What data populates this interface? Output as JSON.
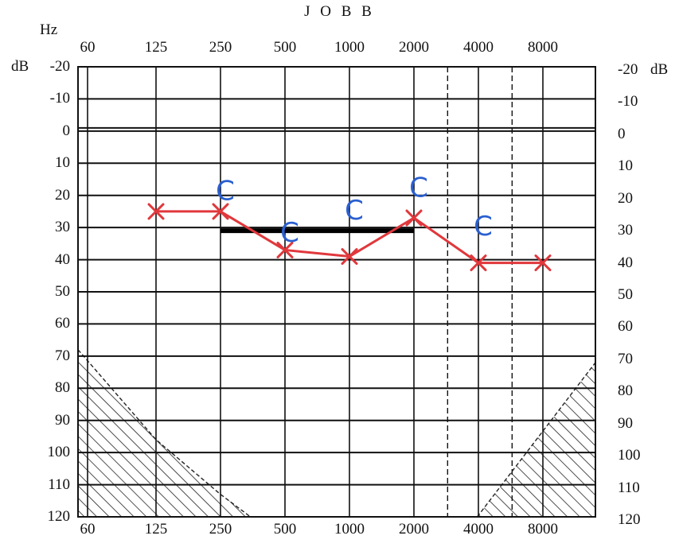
{
  "header": {
    "title": "J O B B",
    "freq_unit": "Hz",
    "db_unit_left": "dB",
    "db_unit_right": "dB"
  },
  "chart_data": {
    "type": "line",
    "title": "J O B B",
    "xlabel": "Hz",
    "ylabel": "dB",
    "x_scale": "log2",
    "x_ticks": [
      "60",
      "125",
      "250",
      "500",
      "1000",
      "2000",
      "4000",
      "8000"
    ],
    "x_ticks_bottom": [
      "60",
      "125",
      "250",
      "500",
      "1000",
      "2000",
      "4000",
      "8000"
    ],
    "y_ticks": [
      "-20",
      "-10",
      "0",
      "10",
      "20",
      "30",
      "40",
      "50",
      "60",
      "70",
      "80",
      "90",
      "100",
      "110",
      "120"
    ],
    "ylim": [
      -20,
      120
    ],
    "y_inverted": true,
    "grid": true,
    "extra_vertical_dashed_at_hz": [
      2800,
      5600
    ],
    "series": [
      {
        "marker": "x",
        "color": "#e0383c",
        "points": [
          {
            "x": 125,
            "y": 25
          },
          {
            "x": 250,
            "y": 25
          },
          {
            "x": 500,
            "y": 37
          },
          {
            "x": 1000,
            "y": 39
          },
          {
            "x": 2000,
            "y": 27
          },
          {
            "x": 4000,
            "y": 41
          },
          {
            "x": 8000,
            "y": 41
          }
        ]
      },
      {
        "marker": "C",
        "color": "#2a5fd0",
        "points": [
          {
            "x": 250,
            "y": 19
          },
          {
            "x": 500,
            "y": 32
          },
          {
            "x": 1000,
            "y": 25
          },
          {
            "x": 2000,
            "y": 18
          },
          {
            "x": 4000,
            "y": 30
          }
        ]
      }
    ],
    "reference_line": {
      "from_hz": 250,
      "to_hz": 2000,
      "y": 31,
      "color": "#000000"
    },
    "hatched_regions": [
      {
        "name": "low-frequency limit",
        "points": [
          {
            "x": 60,
            "y": 68
          },
          {
            "x": 125,
            "y": 96
          },
          {
            "x": 250,
            "y": 113
          },
          {
            "x": 345,
            "y": 120
          },
          {
            "x": 60,
            "y": 120
          }
        ]
      },
      {
        "name": "high-frequency limit",
        "points": [
          {
            "x": 3950,
            "y": 120
          },
          {
            "x": 11000,
            "y": 72
          },
          {
            "x": 11000,
            "y": 120
          }
        ]
      }
    ]
  }
}
